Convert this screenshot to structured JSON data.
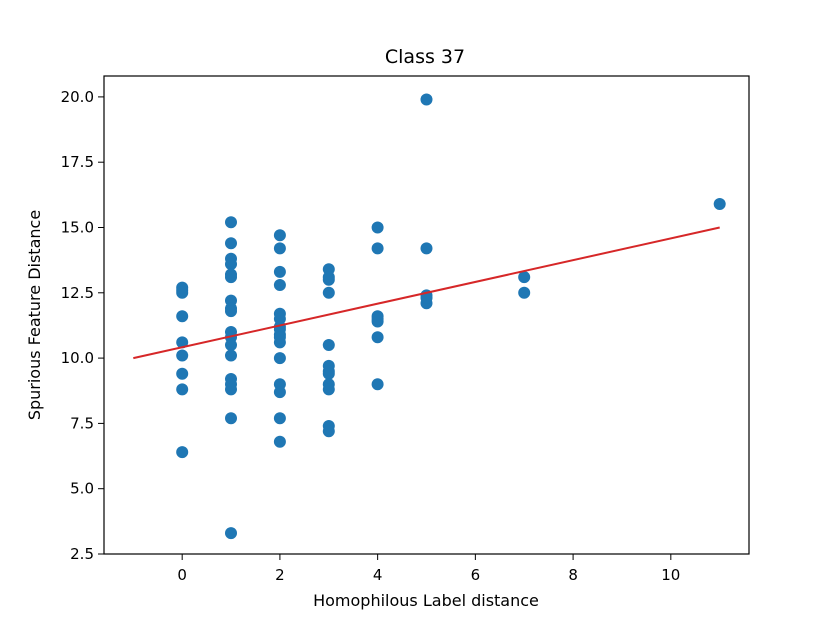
{
  "chart_data": {
    "type": "scatter",
    "title": "Class 37",
    "xlabel": "Homophilous Label distance",
    "ylabel": "Spurious Feature Distance",
    "xlim": [
      -1.6,
      11.6
    ],
    "ylim": [
      2.5,
      20.8
    ],
    "xticks": [
      0,
      2,
      4,
      6,
      8,
      10
    ],
    "yticks": [
      2.5,
      5.0,
      7.5,
      10.0,
      12.5,
      15.0,
      17.5,
      20.0
    ],
    "grid": false,
    "colors": {
      "points": "#1f77b4",
      "fit_line": "#d62728"
    },
    "series": [
      {
        "x": [
          0,
          0,
          0,
          0,
          0,
          0,
          0,
          0,
          0,
          1,
          1,
          1,
          1,
          1,
          1,
          1,
          1,
          1,
          1,
          1,
          1,
          1,
          1,
          1,
          1,
          1,
          1,
          2,
          2,
          2,
          2,
          2,
          2,
          2,
          2,
          2,
          2,
          2,
          2,
          2,
          2,
          2,
          2,
          3,
          3,
          3,
          3,
          3,
          3,
          3,
          3,
          3,
          3,
          3,
          3,
          4,
          4,
          4,
          4,
          4,
          4,
          4,
          5,
          5,
          5,
          5,
          5,
          7,
          7,
          11
        ],
        "y": [
          12.6,
          12.5,
          11.6,
          10.6,
          10.1,
          9.4,
          8.8,
          6.4,
          12.7,
          15.2,
          14.4,
          13.8,
          13.6,
          13.2,
          13.1,
          12.2,
          11.9,
          11.0,
          10.8,
          10.5,
          10.1,
          9.2,
          9.0,
          8.8,
          7.7,
          3.3,
          11.8,
          14.7,
          14.2,
          13.3,
          12.8,
          11.7,
          11.5,
          11.1,
          10.9,
          10.6,
          10.0,
          9.0,
          8.7,
          7.7,
          6.8,
          11.2,
          10.8,
          13.4,
          13.1,
          12.5,
          10.5,
          9.7,
          9.5,
          9.4,
          9.0,
          8.8,
          7.4,
          7.2,
          13.0,
          15.0,
          14.2,
          11.6,
          11.4,
          10.8,
          9.0,
          11.5,
          19.9,
          14.2,
          12.4,
          12.1,
          12.3,
          13.1,
          12.5,
          15.9
        ]
      }
    ],
    "fit_line": {
      "x": [
        -1,
        11
      ],
      "y": [
        10.0,
        15.0
      ]
    }
  }
}
